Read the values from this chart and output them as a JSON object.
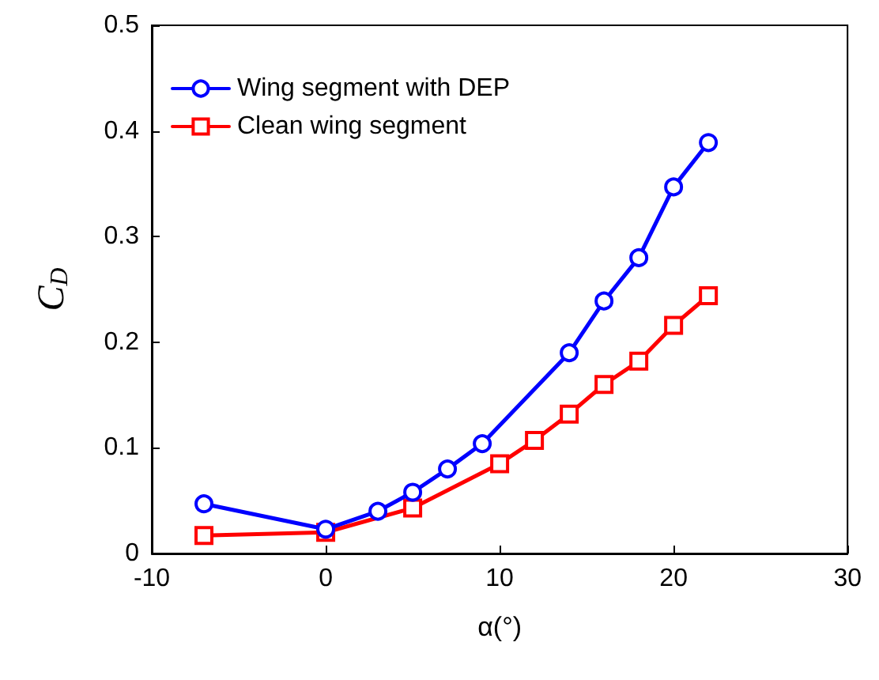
{
  "chart_data": {
    "type": "line",
    "xlabel": "α(°)",
    "ylabel": "C$_{D}$",
    "xlim": [
      -10,
      30
    ],
    "xticks": [
      -10,
      0,
      10,
      20,
      30
    ],
    "ylim": [
      0,
      0.5
    ],
    "yticks": [
      0,
      0.1,
      0.2,
      0.3,
      0.4,
      0.5
    ],
    "grid": false,
    "legend": "top left",
    "line_style": "solid",
    "series": [
      {
        "name": "Wing segment with DEP",
        "color": "#0000ff",
        "marker": "circle",
        "x": [
          -7,
          0,
          3,
          5,
          7,
          9,
          14,
          16,
          18,
          20,
          22
        ],
        "values": [
          0.047,
          0.023,
          0.04,
          0.058,
          0.08,
          0.104,
          0.19,
          0.239,
          0.28,
          0.347,
          0.389
        ]
      },
      {
        "name": "Clean wing segment",
        "color": "#ff0000",
        "marker": "square",
        "x": [
          -7,
          0,
          5,
          10,
          12,
          14,
          16,
          18,
          20,
          22
        ],
        "values": [
          0.017,
          0.02,
          0.043,
          0.085,
          0.107,
          0.132,
          0.16,
          0.182,
          0.216,
          0.244
        ]
      }
    ]
  }
}
